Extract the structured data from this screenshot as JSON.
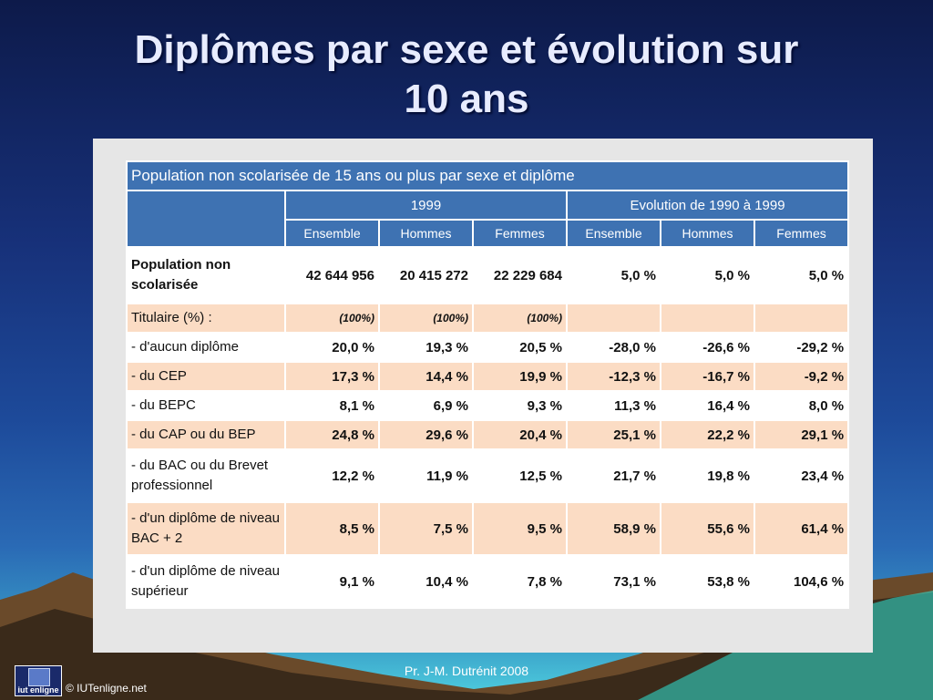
{
  "slide": {
    "title_line1": "Diplômes par sexe et évolution sur",
    "title_line2": "10 ans",
    "footer": "Pr.  J-M. Dutrénit  2008",
    "copyright": "© IUTenligne.net",
    "logo_text": "iut enligne"
  },
  "table": {
    "caption": "Population non scolarisée de 15 ans ou plus par sexe et diplôme",
    "group_headers": [
      "1999",
      "Evolution de 1990 à 1999"
    ],
    "sub_headers": [
      "Ensemble",
      "Hommes",
      "Femmes",
      "Ensemble",
      "Hommes",
      "Femmes"
    ],
    "rows": [
      {
        "label": "Population non scolarisée",
        "values": [
          "42 644 956",
          "20 415 272",
          "22 229 684",
          "5,0 %",
          "5,0 %",
          "5,0 %"
        ]
      },
      {
        "label": "Titulaire (%) :",
        "values": [
          "(100%)",
          "(100%)",
          "(100%)",
          "",
          "",
          ""
        ]
      },
      {
        "label": "- d'aucun diplôme",
        "values": [
          "20,0 %",
          "19,3 %",
          "20,5 %",
          "-28,0 %",
          "-26,6 %",
          "-29,2 %"
        ]
      },
      {
        "label": "- du CEP",
        "values": [
          "17,3 %",
          "14,4 %",
          "19,9 %",
          "-12,3 %",
          "-16,7 %",
          "-9,2 %"
        ]
      },
      {
        "label": "- du BEPC",
        "values": [
          "8,1 %",
          "6,9 %",
          "9,3 %",
          "11,3 %",
          "16,4 %",
          "8,0 %"
        ]
      },
      {
        "label": "- du CAP ou du BEP",
        "values": [
          "24,8 %",
          "29,6 %",
          "20,4 %",
          "25,1 %",
          "22,2 %",
          "29,1 %"
        ]
      },
      {
        "label": "- du BAC ou du Brevet professionnel",
        "values": [
          "12,2 %",
          "11,9 %",
          "12,5 %",
          "21,7 %",
          "19,8 %",
          "23,4 %"
        ]
      },
      {
        "label": "- d'un diplôme de niveau BAC + 2",
        "values": [
          "8,5 %",
          "7,5 %",
          "9,5 %",
          "58,9 %",
          "55,6 %",
          "61,4 %"
        ]
      },
      {
        "label": "- d'un diplôme de niveau supérieur",
        "values": [
          "9,1 %",
          "10,4 %",
          "7,8 %",
          "73,1 %",
          "53,8 %",
          "104,6 %"
        ]
      }
    ]
  },
  "colors": {
    "header_blue": "#3e72b2",
    "row_peach": "#fbdcc4",
    "panel_gray": "#e6e6e6"
  }
}
